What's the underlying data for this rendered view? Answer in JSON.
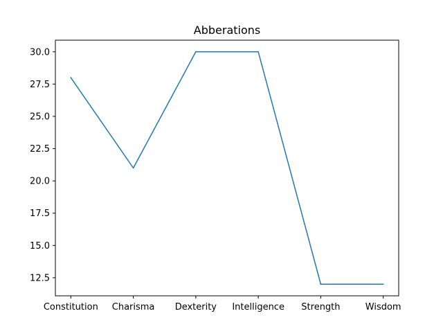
{
  "chart_data": {
    "type": "line",
    "title": "Abberations",
    "xlabel": "",
    "ylabel": "",
    "categories": [
      "Constitution",
      "Charisma",
      "Dexterity",
      "Intelligence",
      "Strength",
      "Wisdom"
    ],
    "series": [
      {
        "values": [
          28,
          21,
          30,
          30,
          12,
          12
        ],
        "color": "#1f77b4"
      }
    ],
    "ylim": [
      11.1,
      30.9
    ],
    "yticks": [
      12.5,
      15.0,
      17.5,
      20.0,
      22.5,
      25.0,
      27.5,
      30.0
    ],
    "ytick_labels": [
      "12.5",
      "15.0",
      "17.5",
      "20.0",
      "22.5",
      "25.0",
      "27.5",
      "30.0"
    ],
    "grid": false,
    "legend": "none"
  }
}
